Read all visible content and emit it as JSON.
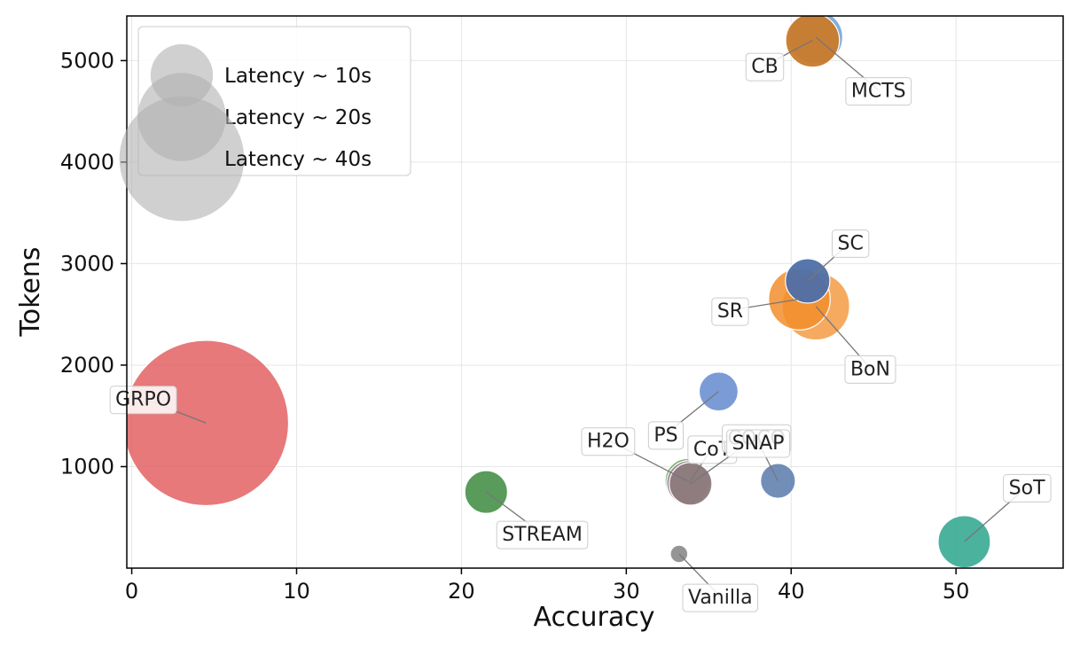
{
  "chart_data": {
    "type": "scatter",
    "xlabel": "Accuracy",
    "ylabel": "Tokens",
    "xlim": [
      -0.3,
      56.5
    ],
    "ylim": [
      0,
      5440
    ],
    "xticks": [
      0,
      10,
      20,
      30,
      40,
      50
    ],
    "yticks": [
      1000,
      2000,
      3000,
      4000,
      5000
    ],
    "grid": true,
    "legend": {
      "placement": "top-left",
      "entries": [
        {
          "label": "Latency ~ 10s",
          "latency": 10
        },
        {
          "label": "Latency ~ 20s",
          "latency": 20
        },
        {
          "label": "Latency ~ 40s",
          "latency": 40
        }
      ]
    },
    "points": [
      {
        "name": "GRPO",
        "x": 4.5,
        "y": 1430,
        "latency": 180,
        "color": "#e15759",
        "alpha": 0.8,
        "label_dx": -3.8,
        "label_dy": 240
      },
      {
        "name": "STREAM",
        "x": 21.5,
        "y": 750,
        "latency": 12,
        "color": "#3b8a3e",
        "alpha": 0.85,
        "label_dx": 3.4,
        "label_dy": -410
      },
      {
        "name": "Vanilla",
        "x": 33.2,
        "y": 140,
        "latency": 2,
        "color": "#8a8a8a",
        "alpha": 0.9,
        "label_dx": 2.5,
        "label_dy": -420
      },
      {
        "name": "H2O",
        "x": 33.7,
        "y": 860,
        "latency": 13,
        "color": "#59a14f",
        "alpha": 0.8,
        "label_dx": -4.8,
        "label_dy": 400
      },
      {
        "name": "CoT",
        "x": 33.8,
        "y": 840,
        "latency": 13,
        "color": "#b07aa1",
        "alpha": 0.8,
        "label_dx": 1.4,
        "label_dy": 340
      },
      {
        "name": "COCO",
        "x": 33.9,
        "y": 830,
        "latency": 12,
        "color": "#8c7b7b",
        "alpha": 0.9,
        "label_dx": 4.0,
        "label_dy": 460
      },
      {
        "name": "PS",
        "x": 35.6,
        "y": 1740,
        "latency": 10,
        "color": "#4e79c7",
        "alpha": 0.75,
        "label_dx": -3.2,
        "label_dy": -420
      },
      {
        "name": "SNAP",
        "x": 39.2,
        "y": 860,
        "latency": 8,
        "color": "#4e72a8",
        "alpha": 0.8,
        "label_dx": -1.2,
        "label_dy": 380
      },
      {
        "name": "SC",
        "x": 41.0,
        "y": 2830,
        "latency": 13,
        "color": "#4e6fa8",
        "alpha": 0.95,
        "label_dx": 2.6,
        "label_dy": 380
      },
      {
        "name": "SR",
        "x": 40.5,
        "y": 2650,
        "latency": 25,
        "color": "#f28e2b",
        "alpha": 0.85,
        "label_dx": -4.2,
        "label_dy": -110
      },
      {
        "name": "BoN",
        "x": 41.5,
        "y": 2580,
        "latency": 30,
        "color": "#f28e2b",
        "alpha": 0.75,
        "label_dx": 3.3,
        "label_dy": -610
      },
      {
        "name": "MCTS",
        "x": 41.5,
        "y": 5230,
        "latency": 19,
        "color": "#76a5d9",
        "alpha": 0.9,
        "label_dx": 3.8,
        "label_dy": -520
      },
      {
        "name": "CB",
        "x": 41.3,
        "y": 5200,
        "latency": 19,
        "color": "#c97a2a",
        "alpha": 0.95,
        "label_dx": -2.9,
        "label_dy": -250
      },
      {
        "name": "SoT",
        "x": 50.5,
        "y": 260,
        "latency": 18,
        "color": "#2ca58d",
        "alpha": 0.85,
        "label_dx": 3.8,
        "label_dy": 540
      }
    ]
  }
}
